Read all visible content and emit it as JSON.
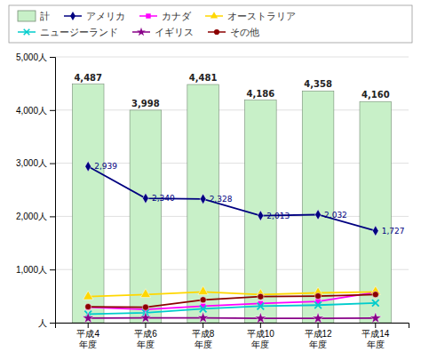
{
  "chart_data": {
    "type": "bar",
    "categories": [
      "平成4\n年度",
      "平成6\n年度",
      "平成8\n年度",
      "平成10\n年度",
      "平成12\n年度",
      "平成14\n年度"
    ],
    "series": [
      {
        "name": "計",
        "type": "bar",
        "color": "#C8F0C8",
        "values": [
          4487,
          3998,
          4481,
          4186,
          4358,
          4160
        ],
        "value_labels": [
          "4,487",
          "3,998",
          "4,481",
          "4,186",
          "4,358",
          "4,160"
        ],
        "data_labels": true
      },
      {
        "name": "アメリカ",
        "type": "line",
        "color": "#000080",
        "marker": "diamond",
        "values": [
          2939,
          2340,
          2328,
          2013,
          2032,
          1727
        ],
        "value_labels": [
          "2,939",
          "2,340",
          "2,328",
          "2,013",
          "2,032",
          "1,727"
        ],
        "data_labels": true
      },
      {
        "name": "カナダ",
        "type": "line",
        "color": "#FF00FF",
        "marker": "square",
        "values": [
          290,
          250,
          310,
          360,
          400,
          570
        ]
      },
      {
        "name": "オーストラリア",
        "type": "line",
        "color": "#FFD700",
        "marker": "triangle",
        "values": [
          490,
          530,
          580,
          530,
          560,
          580
        ]
      },
      {
        "name": "ニュージーランド",
        "type": "line",
        "color": "#00CCCC",
        "marker": "x",
        "values": [
          160,
          185,
          260,
          310,
          330,
          370
        ]
      },
      {
        "name": "イギリス",
        "type": "line",
        "color": "#880088",
        "marker": "star",
        "values": [
          85,
          90,
          90,
          80,
          80,
          85
        ]
      },
      {
        "name": "その他",
        "type": "line",
        "color": "#8B0000",
        "marker": "circle",
        "values": [
          300,
          290,
          430,
          490,
          500,
          530
        ]
      }
    ],
    "ylim": [
      0,
      5000
    ],
    "yticks": [
      {
        "value": 0,
        "label": "人"
      },
      {
        "value": 1000,
        "label": "1,000人"
      },
      {
        "value": 2000,
        "label": "2,000人"
      },
      {
        "value": 3000,
        "label": "3,000人"
      },
      {
        "value": 4000,
        "label": "4,000人"
      },
      {
        "value": 5000,
        "label": "5,000人"
      }
    ],
    "grid": true,
    "legend": "top"
  }
}
